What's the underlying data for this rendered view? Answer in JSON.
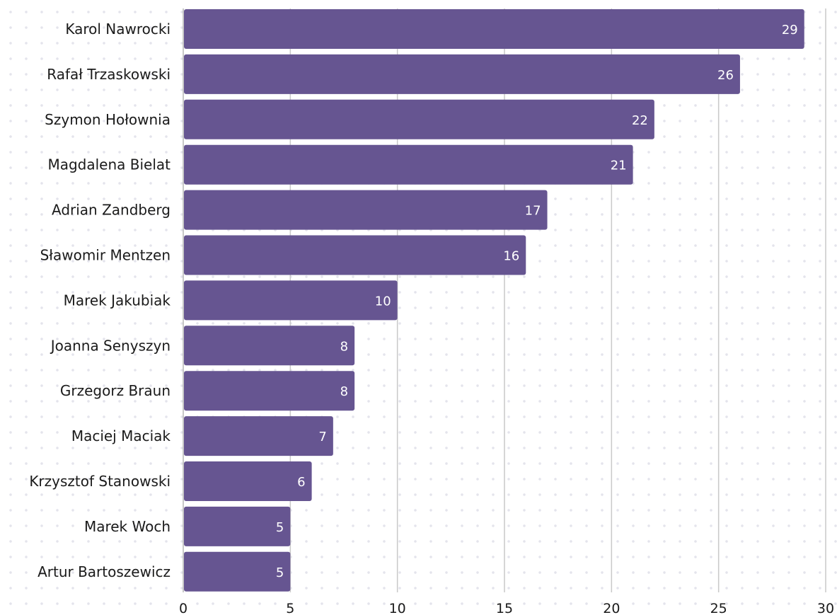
{
  "chart_data": {
    "type": "bar",
    "orientation": "horizontal",
    "categories": [
      "Karol Nawrocki",
      "Rafał Trzaskowski",
      "Szymon Hołownia",
      "Magdalena Bielat",
      "Adrian Zandberg",
      "Sławomir Mentzen",
      "Marek Jakubiak",
      "Joanna Senyszyn",
      "Grzegorz Braun",
      "Maciej Maciak",
      "Krzysztof Stanowski",
      "Marek Woch",
      "Artur Bartoszewicz"
    ],
    "values": [
      29,
      26,
      22,
      21,
      17,
      16,
      10,
      8,
      8,
      7,
      6,
      5,
      5
    ],
    "title": "",
    "xlabel": "",
    "ylabel": "",
    "xlim": [
      0,
      30
    ],
    "xticks": [
      0,
      5,
      10,
      15,
      20,
      25,
      30
    ],
    "grid": true,
    "bar_color": "#665591",
    "value_label_color": "#ffffff",
    "data_labels": true
  }
}
